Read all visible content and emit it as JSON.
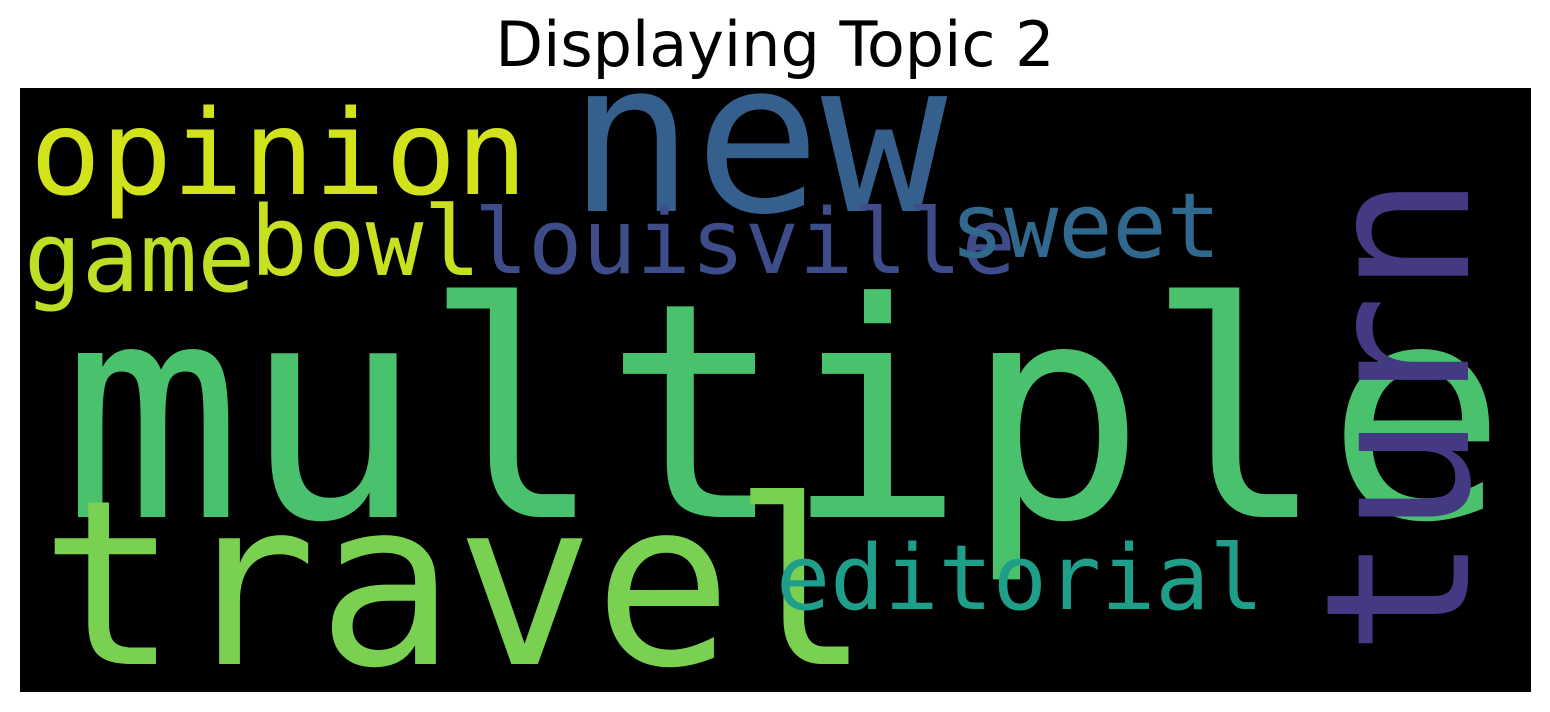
{
  "title": "Displaying Topic 2",
  "words": {
    "multiple": {
      "text": "multiple",
      "color": "#4ac16d"
    },
    "travel": {
      "text": "travel",
      "color": "#7ad151"
    },
    "new": {
      "text": "new",
      "color": "#355f8d"
    },
    "opinion": {
      "text": "opinion",
      "color": "#d2e21b"
    },
    "turn": {
      "text": "turn",
      "color": "#443983"
    },
    "game": {
      "text": "game",
      "color": "#bddf26"
    },
    "bowl": {
      "text": "bowl",
      "color": "#c8e020"
    },
    "louisville": {
      "text": "louisville",
      "color": "#3e4c8a"
    },
    "sweet": {
      "text": "sweet",
      "color": "#31688e"
    },
    "editorial": {
      "text": "editorial",
      "color": "#1f9e89"
    }
  },
  "background_color": "#000000"
}
